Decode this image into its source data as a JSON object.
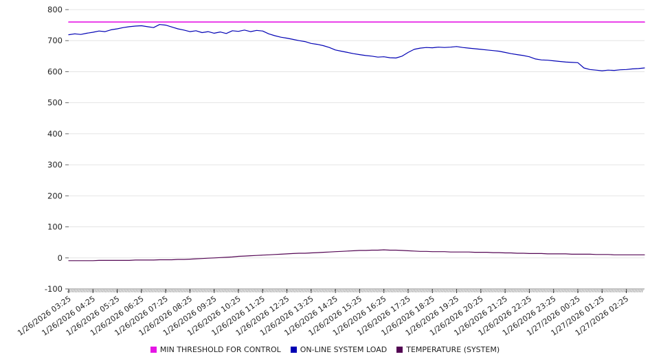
{
  "chart_data": {
    "type": "line",
    "title": "",
    "xlabel": "",
    "ylabel": "",
    "ylim": [
      -100,
      800
    ],
    "y_ticks": [
      800,
      700,
      600,
      500,
      400,
      300,
      200,
      100,
      0,
      -100
    ],
    "grid": "horizontal",
    "legend_position": "bottom",
    "x_interval_minutes": 15,
    "x_tick_every_n_points": 4,
    "x_hour_tick_labels": [
      "1/26/2026 03:25",
      "1/26/2026 04:25",
      "1/26/2026 05:25",
      "1/26/2026 06:25",
      "1/26/2026 07:25",
      "1/26/2026 08:25",
      "1/26/2026 09:25",
      "1/26/2026 10:25",
      "1/26/2026 11:25",
      "1/26/2026 12:25",
      "1/26/2026 13:25",
      "1/26/2026 14:25",
      "1/26/2026 15:25",
      "1/26/2026 16:25",
      "1/26/2026 17:25",
      "1/26/2026 18:25",
      "1/26/2026 19:25",
      "1/26/2026 20:25",
      "1/26/2026 21:25",
      "1/26/2026 22:25",
      "1/26/2026 23:25",
      "1/27/2026 00:25",
      "1/27/2026 01:25",
      "1/27/2026 02:25"
    ],
    "series": [
      {
        "name": "MIN THRESHOLD FOR CONTROL",
        "color": "#e516e5",
        "constant": 760
      },
      {
        "name": "ON-LINE SYSTEM LOAD",
        "color": "#0000b4",
        "values": [
          719,
          722,
          720,
          724,
          727,
          731,
          729,
          735,
          738,
          742,
          745,
          747,
          748,
          745,
          742,
          752,
          750,
          744,
          738,
          734,
          729,
          732,
          726,
          729,
          724,
          728,
          723,
          732,
          730,
          734,
          729,
          733,
          731,
          722,
          716,
          711,
          708,
          704,
          700,
          697,
          691,
          688,
          684,
          678,
          670,
          666,
          662,
          658,
          655,
          652,
          650,
          647,
          648,
          645,
          644,
          650,
          662,
          672,
          676,
          678,
          677,
          679,
          678,
          679,
          681,
          678,
          676,
          674,
          672,
          670,
          668,
          666,
          662,
          658,
          655,
          652,
          648,
          641,
          638,
          637,
          635,
          633,
          631,
          630,
          629,
          612,
          607,
          605,
          603,
          605,
          604,
          606,
          607,
          609,
          610,
          612
        ]
      },
      {
        "name": "TEMPERATURE (SYSTEM)",
        "color": "#530553",
        "values": [
          -9,
          -9,
          -9,
          -9,
          -9,
          -8,
          -8,
          -8,
          -8,
          -8,
          -8,
          -7,
          -7,
          -7,
          -7,
          -6,
          -6,
          -6,
          -5,
          -5,
          -4,
          -3,
          -2,
          -1,
          0,
          1,
          2,
          3,
          5,
          6,
          7,
          8,
          9,
          10,
          11,
          12,
          13,
          14,
          15,
          15,
          16,
          17,
          18,
          19,
          20,
          21,
          22,
          23,
          24,
          24,
          25,
          25,
          26,
          25,
          25,
          24,
          23,
          22,
          21,
          21,
          20,
          20,
          20,
          19,
          19,
          19,
          19,
          18,
          18,
          18,
          17,
          17,
          16,
          16,
          15,
          15,
          14,
          14,
          14,
          13,
          13,
          13,
          13,
          12,
          12,
          12,
          12,
          11,
          11,
          11,
          10,
          10,
          10,
          10,
          10,
          10
        ]
      }
    ]
  }
}
